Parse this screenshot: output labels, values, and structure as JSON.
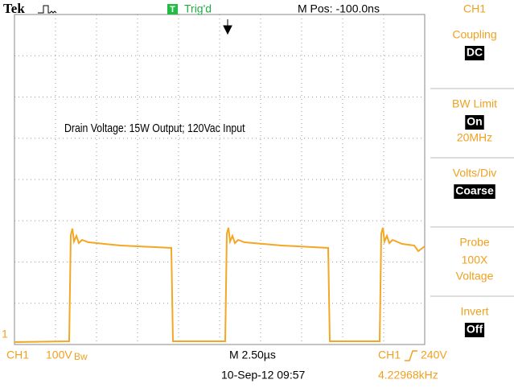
{
  "header": {
    "brand": "Tek",
    "trigger_badge": "T",
    "trigger_status": "Trig'd",
    "position": "M Pos: -100.0ns",
    "channel": "CH1"
  },
  "annotation": "Drain Voltage: 15W Output; 120Vac Input",
  "channel_marker": "1",
  "menu": [
    {
      "label": "Coupling",
      "value": "DC"
    },
    {
      "label": "BW Limit",
      "value": "On",
      "lines": [
        "20MHz"
      ]
    },
    {
      "label": "Volts/Div",
      "value": "Coarse"
    },
    {
      "label": "Probe",
      "lines": [
        "100X",
        "Voltage"
      ]
    },
    {
      "label": "Invert",
      "value": "Off"
    }
  ],
  "footer": {
    "ch_source": "CH1",
    "ch_scale": "100V",
    "ch_bw": "Bw",
    "timebase": "M 2.50µs",
    "trigger_source": "CH1",
    "trigger_level": "240V",
    "date": "10-Sep-12 09:57",
    "frequency": "4.22968kHz"
  }
}
